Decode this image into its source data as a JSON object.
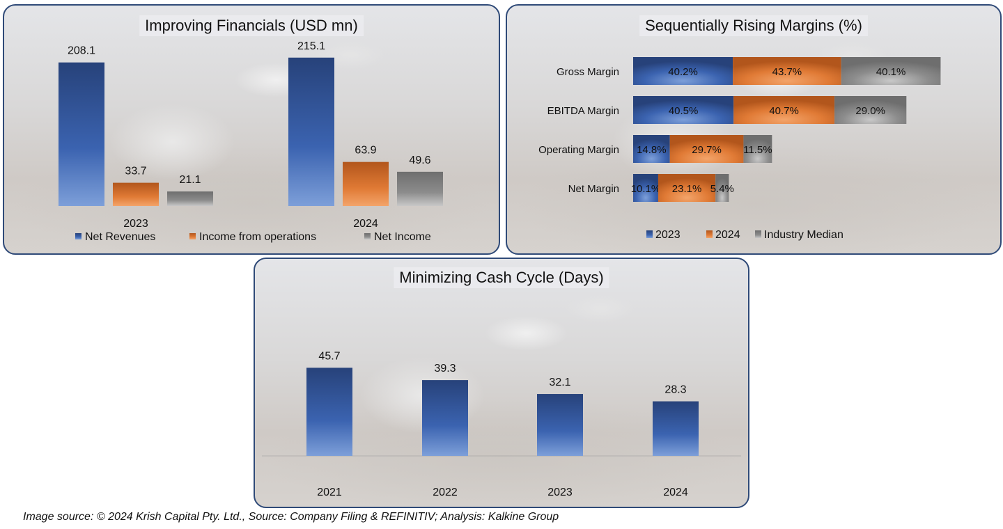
{
  "chart_data": [
    {
      "type": "bar",
      "title": "Improving Financials (USD mn)",
      "categories": [
        "2023",
        "2024"
      ],
      "series": [
        {
          "name": "Net Revenues",
          "values": [
            208.1,
            215.1
          ]
        },
        {
          "name": "Income from operations",
          "values": [
            33.7,
            63.9
          ]
        },
        {
          "name": "Net Income",
          "values": [
            21.1,
            49.6
          ]
        }
      ],
      "xlabel": "",
      "ylabel": "",
      "ylim": [
        0,
        230
      ],
      "grid": false,
      "legend": "bottom"
    },
    {
      "type": "bar",
      "orientation": "horizontal",
      "stacked": true,
      "title": "Sequentially Rising Margins (%)",
      "categories": [
        "Gross Margin",
        "EBITDA Margin",
        "Operating Margin",
        "Net Margin"
      ],
      "series": [
        {
          "name": "2023",
          "values": [
            40.2,
            40.5,
            14.8,
            10.1
          ],
          "labels": [
            "40.2%",
            "40.5%",
            "14.8%",
            "10.1%"
          ]
        },
        {
          "name": "2024",
          "values": [
            43.7,
            40.7,
            29.7,
            23.1
          ],
          "labels": [
            "43.7%",
            "40.7%",
            "29.7%",
            "23.1%"
          ]
        },
        {
          "name": "Industry Median",
          "values": [
            40.1,
            29.0,
            11.5,
            5.4
          ],
          "labels": [
            "40.1%",
            "29.0%",
            "11.5%",
            "5.4%"
          ]
        }
      ],
      "xlim": [
        0,
        130
      ],
      "grid": false,
      "legend": "bottom"
    },
    {
      "type": "bar",
      "title": "Minimizing Cash Cycle (Days)",
      "categories": [
        "2021",
        "2022",
        "2023",
        "2024"
      ],
      "values": [
        45.7,
        39.3,
        32.1,
        28.3
      ],
      "xlabel": "",
      "ylabel": "",
      "ylim": [
        0,
        60
      ],
      "grid": false,
      "legend": "none"
    }
  ],
  "colors": {
    "blue": "#3d6cc0",
    "blue_dark": "#27427a",
    "orange": "#e0762e",
    "orange_dark": "#b2561c",
    "gray": "#9a9a9a",
    "gray_dark": "#6e6e6e",
    "border": "#2f4a78"
  },
  "footer": {
    "source_text": "Image source: © 2024 Krish Capital Pty. Ltd., Source: Company Filing & REFINITIV; Analysis: Kalkine Group"
  }
}
